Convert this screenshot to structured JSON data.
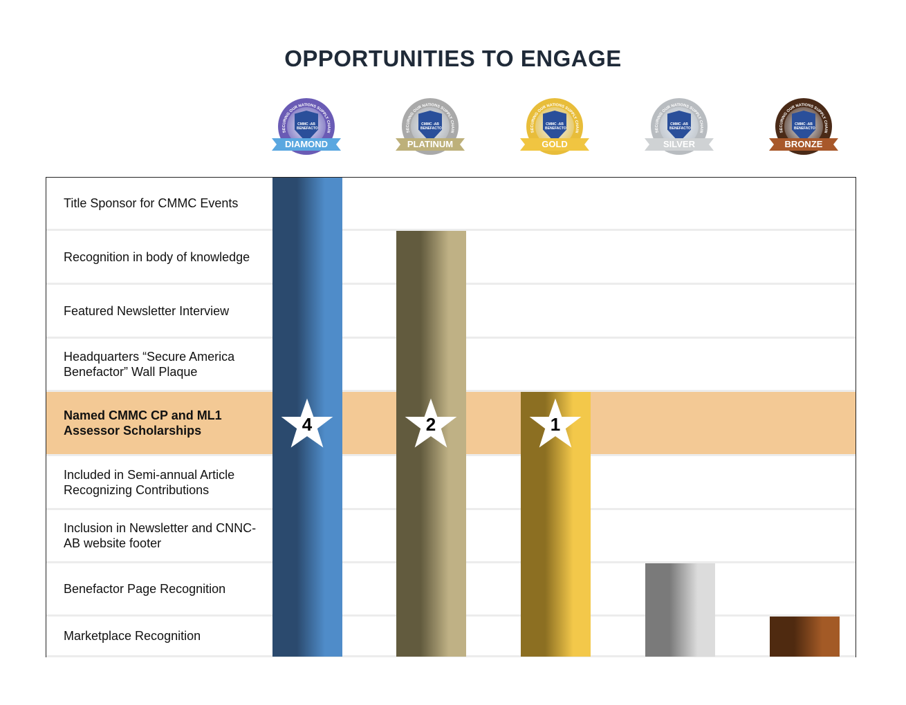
{
  "title": "OPPORTUNITIES TO ENGAGE",
  "badge_text": {
    "ring": "SECURING OUR NATIONS SUPPLY CHAIN",
    "shield": "CMMC -AB BENEFACTOR"
  },
  "chart_data": {
    "type": "bar",
    "title": "OPPORTUNITIES TO ENGAGE",
    "categories": [
      "DIAMOND",
      "PLATINUM",
      "GOLD",
      "SILVER",
      "BRONZE"
    ],
    "rows": [
      "Title Sponsor for CMMC Events",
      "Recognition in  body of knowledge",
      "Featured Newsletter Interview",
      "Headquarters “Secure America Benefactor” Wall Plaque",
      "Named CMMC CP and ML1 Assessor Scholarships",
      "Included in Semi-annual Article Recognizing Contributions",
      "Inclusion in Newsletter and CNNC-AB website footer",
      "Benefactor Page Recognition",
      "Marketplace Recognition"
    ],
    "highlighted_row": 4,
    "values": [
      9,
      8,
      5,
      2,
      1
    ],
    "scholarships": [
      "4",
      "2",
      "1",
      null,
      null
    ],
    "colors": [
      [
        "#2b4a6e",
        "#4f8cc9"
      ],
      [
        "#625b3e",
        "#bfb185"
      ],
      [
        "#8c6f22",
        "#f3c84a"
      ],
      [
        "#7a7a7a",
        "#dcdcdc"
      ],
      [
        "#4f2a10",
        "#a35a26"
      ]
    ],
    "badge_colors": [
      [
        "#6a5bb5",
        "#5aa7e0"
      ],
      [
        "#a9a9a9",
        "#bdb07a"
      ],
      [
        "#e8bd3a",
        "#f0c541"
      ],
      [
        "#b8bcc0",
        "#cfd2d4"
      ],
      [
        "#4a2a17",
        "#a8582a"
      ]
    ]
  }
}
